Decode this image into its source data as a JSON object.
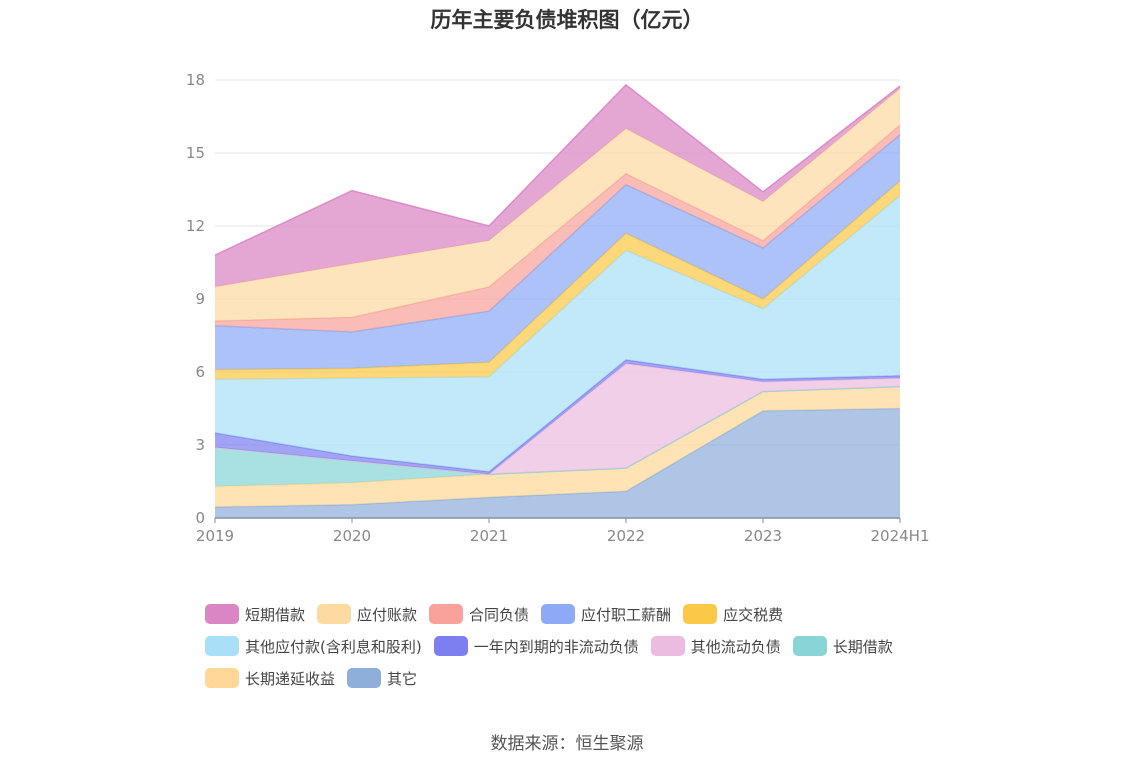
{
  "chart_data": {
    "type": "area",
    "title": "历年主要负债堆积图（亿元）",
    "stacked": true,
    "categories": [
      "2019",
      "2020",
      "2021",
      "2022",
      "2023",
      "2024H1"
    ],
    "ylim": [
      0,
      18
    ],
    "yticks": [
      "0",
      "3",
      "6",
      "9",
      "12",
      "15",
      "18"
    ],
    "grid": true,
    "legend_position": "bottom",
    "series": [
      {
        "name": "其它",
        "color": "#8fafdb",
        "values": [
          0.45,
          0.55,
          0.85,
          1.1,
          4.4,
          4.5
        ]
      },
      {
        "name": "长期递延收益",
        "color": "#ffd899",
        "values": [
          0.85,
          0.9,
          0.95,
          0.95,
          0.8,
          0.9
        ]
      },
      {
        "name": "长期借款",
        "color": "#88d4d6",
        "values": [
          1.6,
          0.9,
          0.0,
          0.0,
          0.0,
          0.0
        ]
      },
      {
        "name": "其他流动负债",
        "color": "#ebbce0",
        "values": [
          0.0,
          0.0,
          0.0,
          4.3,
          0.4,
          0.35
        ]
      },
      {
        "name": "一年内到期的非流动负债",
        "color": "#7d7ff0",
        "values": [
          0.6,
          0.2,
          0.1,
          0.15,
          0.1,
          0.1
        ]
      },
      {
        "name": "其他应付款(含利息和股利)",
        "color": "#a9e0f8",
        "values": [
          2.2,
          3.2,
          3.9,
          4.5,
          2.9,
          7.4
        ]
      },
      {
        "name": "应交税费",
        "color": "#fbc947",
        "values": [
          0.4,
          0.4,
          0.6,
          0.7,
          0.4,
          0.6
        ]
      },
      {
        "name": "应付职工薪酬",
        "color": "#8eaaf6",
        "values": [
          1.8,
          1.5,
          2.1,
          2.0,
          2.1,
          1.9
        ]
      },
      {
        "name": "合同负债",
        "color": "#f8a29b",
        "values": [
          0.2,
          0.6,
          1.0,
          0.45,
          0.3,
          0.4
        ]
      },
      {
        "name": "应付账款",
        "color": "#fedaa3",
        "values": [
          1.4,
          2.2,
          1.9,
          1.85,
          1.6,
          1.5
        ]
      },
      {
        "name": "短期借款",
        "color": "#da85c4",
        "values": [
          1.3,
          3.0,
          0.6,
          1.8,
          0.4,
          0.1
        ]
      }
    ],
    "legend_order": [
      "短期借款",
      "应付账款",
      "合同负债",
      "应付职工薪酬",
      "应交税费",
      "其他应付款(含利息和股利)",
      "一年内到期的非流动负债",
      "其他流动负债",
      "长期借款",
      "长期递延收益",
      "其它"
    ]
  },
  "source_text": "数据来源：恒生聚源"
}
